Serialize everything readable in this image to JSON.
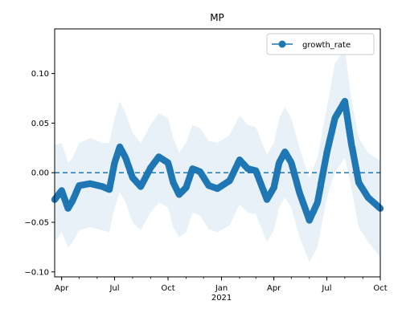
{
  "chart_data": {
    "type": "line",
    "title": "MP",
    "xlabel": "",
    "ylabel": "",
    "x_start": "2020-03-20",
    "x_end": "2021-10-01",
    "ylim": [
      -0.105,
      0.145
    ],
    "yticks": [
      -0.1,
      -0.05,
      0.0,
      0.05,
      0.1
    ],
    "ytick_labels": [
      "−0.10",
      "−0.05",
      "0.00",
      "0.05",
      "0.10"
    ],
    "xticks": [
      {
        "date": "2020-04-01",
        "label": "Apr"
      },
      {
        "date": "2020-07-01",
        "label": "Jul"
      },
      {
        "date": "2020-10-01",
        "label": "Oct"
      },
      {
        "date": "2021-01-01",
        "label": "Jan"
      },
      {
        "date": "2021-04-01",
        "label": "Apr"
      },
      {
        "date": "2021-07-01",
        "label": "Jul"
      },
      {
        "date": "2021-10-01",
        "label": "Oct"
      }
    ],
    "year_label": {
      "date": "2021-01-01",
      "label": "2021"
    },
    "reference_line": 0.0,
    "legend": {
      "placement": "top-right",
      "entries": [
        "growth_rate"
      ]
    },
    "colors": {
      "series": "#1f77b4",
      "band": "#1f77b4"
    },
    "grid": false,
    "series": [
      {
        "name": "growth_rate",
        "points": [
          {
            "x": "2020-03-20",
            "y": -0.027,
            "lo": -0.07,
            "hi": 0.028
          },
          {
            "x": "2020-04-01",
            "y": -0.018,
            "lo": -0.06,
            "hi": 0.03
          },
          {
            "x": "2020-04-12",
            "y": -0.036,
            "lo": -0.075,
            "hi": 0.01
          },
          {
            "x": "2020-04-20",
            "y": -0.028,
            "lo": -0.07,
            "hi": 0.015
          },
          {
            "x": "2020-05-01",
            "y": -0.013,
            "lo": -0.058,
            "hi": 0.03
          },
          {
            "x": "2020-05-20",
            "y": -0.011,
            "lo": -0.055,
            "hi": 0.035
          },
          {
            "x": "2020-06-10",
            "y": -0.014,
            "lo": -0.058,
            "hi": 0.03
          },
          {
            "x": "2020-06-22",
            "y": -0.017,
            "lo": -0.06,
            "hi": 0.03
          },
          {
            "x": "2020-07-01",
            "y": 0.01,
            "lo": -0.035,
            "hi": 0.055
          },
          {
            "x": "2020-07-10",
            "y": 0.026,
            "lo": -0.02,
            "hi": 0.072
          },
          {
            "x": "2020-07-20",
            "y": 0.015,
            "lo": -0.03,
            "hi": 0.06
          },
          {
            "x": "2020-08-01",
            "y": -0.005,
            "lo": -0.05,
            "hi": 0.04
          },
          {
            "x": "2020-08-15",
            "y": -0.014,
            "lo": -0.058,
            "hi": 0.03
          },
          {
            "x": "2020-09-01",
            "y": 0.005,
            "lo": -0.04,
            "hi": 0.048
          },
          {
            "x": "2020-09-15",
            "y": 0.016,
            "lo": -0.03,
            "hi": 0.06
          },
          {
            "x": "2020-10-01",
            "y": 0.01,
            "lo": -0.035,
            "hi": 0.055
          },
          {
            "x": "2020-10-10",
            "y": -0.01,
            "lo": -0.055,
            "hi": 0.035
          },
          {
            "x": "2020-10-20",
            "y": -0.022,
            "lo": -0.065,
            "hi": 0.02
          },
          {
            "x": "2020-11-01",
            "y": -0.015,
            "lo": -0.06,
            "hi": 0.03
          },
          {
            "x": "2020-11-12",
            "y": 0.004,
            "lo": -0.04,
            "hi": 0.048
          },
          {
            "x": "2020-11-25",
            "y": 0.001,
            "lo": -0.043,
            "hi": 0.045
          },
          {
            "x": "2020-12-10",
            "y": -0.013,
            "lo": -0.057,
            "hi": 0.032
          },
          {
            "x": "2020-12-25",
            "y": -0.016,
            "lo": -0.06,
            "hi": 0.03
          },
          {
            "x": "2021-01-15",
            "y": -0.008,
            "lo": -0.053,
            "hi": 0.038
          },
          {
            "x": "2021-02-01",
            "y": 0.013,
            "lo": -0.032,
            "hi": 0.058
          },
          {
            "x": "2021-02-15",
            "y": 0.004,
            "lo": -0.04,
            "hi": 0.048
          },
          {
            "x": "2021-03-01",
            "y": 0.002,
            "lo": -0.042,
            "hi": 0.046
          },
          {
            "x": "2021-03-20",
            "y": -0.027,
            "lo": -0.07,
            "hi": 0.018
          },
          {
            "x": "2021-04-01",
            "y": -0.015,
            "lo": -0.058,
            "hi": 0.03
          },
          {
            "x": "2021-04-10",
            "y": 0.01,
            "lo": -0.035,
            "hi": 0.055
          },
          {
            "x": "2021-04-20",
            "y": 0.021,
            "lo": -0.025,
            "hi": 0.066
          },
          {
            "x": "2021-05-01",
            "y": 0.01,
            "lo": -0.035,
            "hi": 0.055
          },
          {
            "x": "2021-05-15",
            "y": -0.02,
            "lo": -0.065,
            "hi": 0.025
          },
          {
            "x": "2021-06-01",
            "y": -0.048,
            "lo": -0.09,
            "hi": -0.005
          },
          {
            "x": "2021-06-15",
            "y": -0.03,
            "lo": -0.075,
            "hi": 0.015
          },
          {
            "x": "2021-07-01",
            "y": 0.02,
            "lo": -0.025,
            "hi": 0.065
          },
          {
            "x": "2021-07-15",
            "y": 0.055,
            "lo": 0.0,
            "hi": 0.11
          },
          {
            "x": "2021-08-01",
            "y": 0.072,
            "lo": 0.015,
            "hi": 0.125
          },
          {
            "x": "2021-08-12",
            "y": 0.03,
            "lo": -0.015,
            "hi": 0.075
          },
          {
            "x": "2021-08-25",
            "y": -0.01,
            "lo": -0.055,
            "hi": 0.035
          },
          {
            "x": "2021-09-10",
            "y": -0.025,
            "lo": -0.07,
            "hi": 0.02
          },
          {
            "x": "2021-10-01",
            "y": -0.036,
            "lo": -0.085,
            "hi": 0.012
          }
        ]
      }
    ]
  }
}
